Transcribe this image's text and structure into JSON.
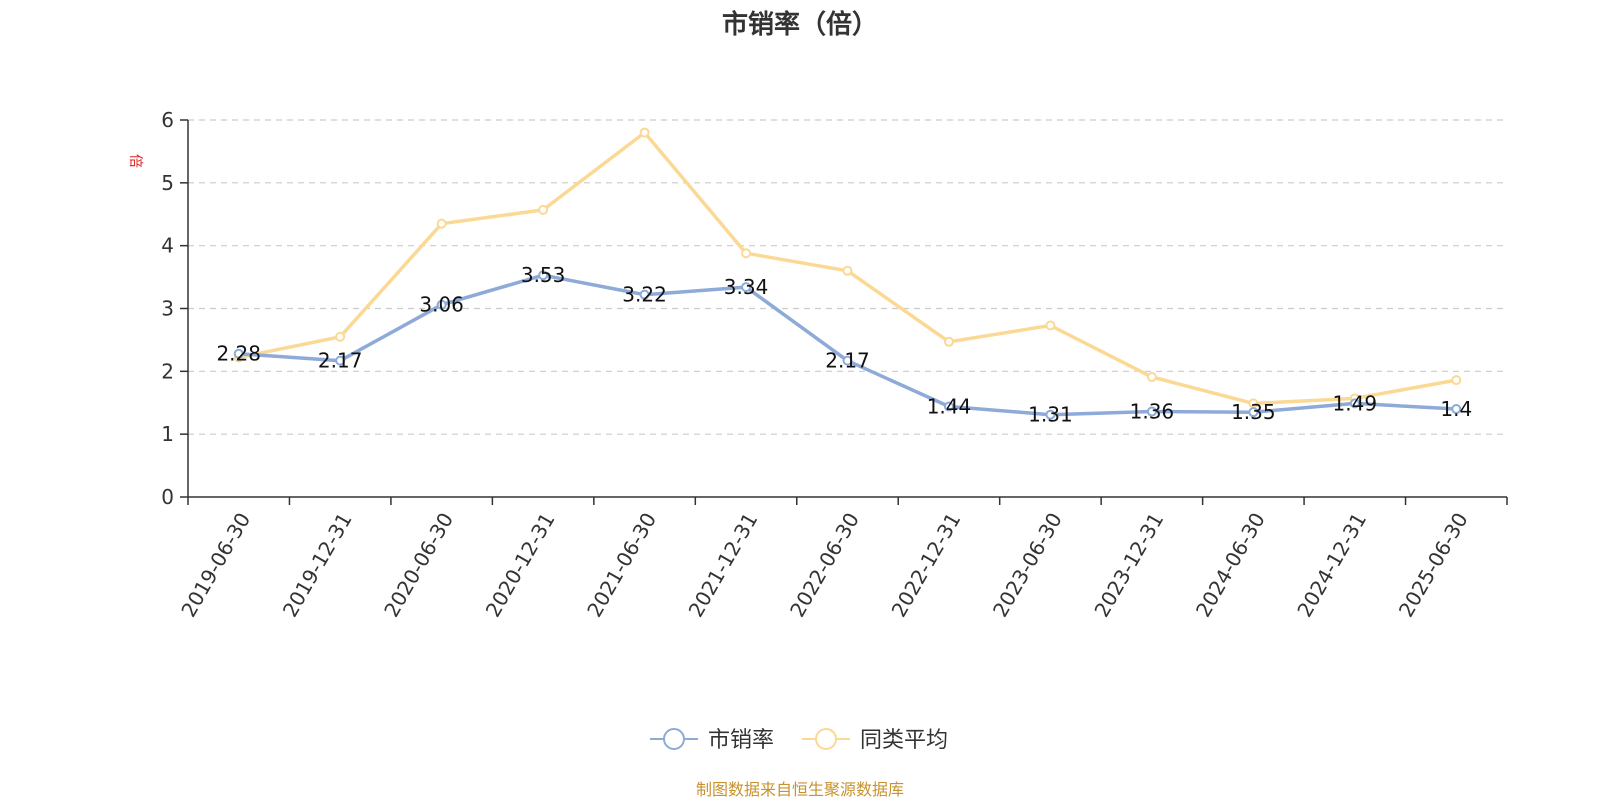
{
  "chart_data": {
    "type": "line",
    "title": "市销率（倍）",
    "ylabel": "倍",
    "xlabel": "",
    "ylim": [
      0,
      6
    ],
    "yticks": [
      "0",
      "1",
      "2",
      "3",
      "4",
      "5",
      "6"
    ],
    "grid": true,
    "legend_position": "bottom-center",
    "categories": [
      "2019-06-30",
      "2019-12-31",
      "2020-06-30",
      "2020-12-31",
      "2021-06-30",
      "2021-12-31",
      "2022-06-30",
      "2022-12-31",
      "2023-06-30",
      "2023-12-31",
      "2024-06-30",
      "2024-12-31",
      "2025-06-30"
    ],
    "series": [
      {
        "name": "市销率",
        "color": "#8daad8",
        "values": [
          2.28,
          2.17,
          3.06,
          3.53,
          3.22,
          3.34,
          2.17,
          1.44,
          1.31,
          1.36,
          1.35,
          1.49,
          1.4
        ],
        "labels": [
          "2.28",
          "2.17",
          "3.06",
          "3.53",
          "3.22",
          "3.34",
          "2.17",
          "1.44",
          "1.31",
          "1.36",
          "1.35",
          "1.49",
          "1.4"
        ]
      },
      {
        "name": "同类平均",
        "color": "#fbd994",
        "values": [
          2.22,
          2.55,
          4.35,
          4.57,
          5.8,
          3.88,
          3.6,
          2.47,
          2.73,
          1.91,
          1.49,
          1.57,
          1.86
        ]
      }
    ],
    "source": "制图数据来自恒生聚源数据库"
  },
  "colors": {
    "unit_label": "#e02020",
    "source_text": "#c8922e",
    "axis": "#333333",
    "gridline": "#cccccc"
  }
}
